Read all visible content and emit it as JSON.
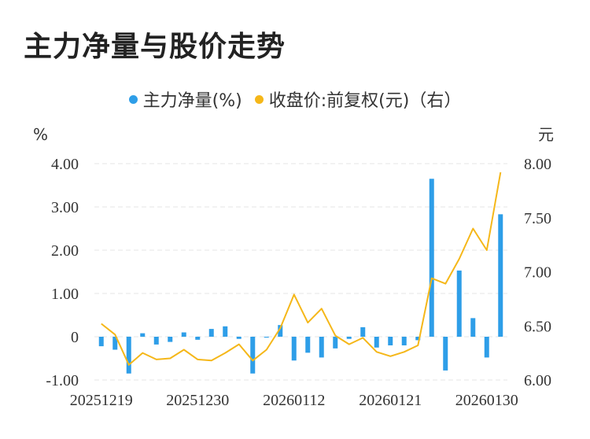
{
  "title": "主力净量与股价走势",
  "legend": {
    "series1": "主力净量(%)",
    "series2": "收盘价:前复权(元)（右）"
  },
  "colors": {
    "bar": "#2e9ee8",
    "line": "#f5b719",
    "grid": "#e6e6e6"
  },
  "chart_data": {
    "type": "bar",
    "title": "主力净量与股价走势",
    "left_axis": {
      "unit": "%",
      "ylim": [
        -1,
        4
      ],
      "ticks": [
        "4.00",
        "3.00",
        "2.00",
        "1.00",
        "0",
        "-1.00"
      ],
      "tick_values": [
        4,
        3,
        2,
        1,
        0,
        -1
      ]
    },
    "right_axis": {
      "unit": "元",
      "ylim": [
        6.0,
        8.0
      ],
      "ticks": [
        "8.00",
        "7.50",
        "7.00",
        "6.50",
        "6.00"
      ],
      "tick_values": [
        8.0,
        7.5,
        7.0,
        6.5,
        6.0
      ]
    },
    "x_tick_labels": [
      {
        "index": 0,
        "label": "20251219"
      },
      {
        "index": 7,
        "label": "20251230"
      },
      {
        "index": 14,
        "label": "20260112"
      },
      {
        "index": 21,
        "label": "20260121"
      },
      {
        "index": 28,
        "label": "20260130"
      }
    ],
    "series": [
      {
        "name": "主力净量(%)",
        "type": "bar",
        "axis": "left",
        "values": [
          -0.22,
          -0.3,
          -0.85,
          0.08,
          -0.18,
          -0.12,
          0.1,
          -0.07,
          0.18,
          0.24,
          -0.05,
          -0.85,
          -0.02,
          0.27,
          -0.55,
          -0.37,
          -0.48,
          -0.27,
          -0.05,
          0.22,
          -0.25,
          -0.2,
          -0.2,
          -0.08,
          3.65,
          -0.78,
          1.53,
          0.43,
          -0.48,
          2.83
        ]
      },
      {
        "name": "收盘价:前复权(元)（右）",
        "type": "line",
        "axis": "right",
        "values": [
          6.52,
          6.42,
          6.14,
          6.25,
          6.19,
          6.2,
          6.28,
          6.19,
          6.18,
          6.25,
          6.33,
          6.18,
          6.28,
          6.48,
          6.79,
          6.53,
          6.66,
          6.41,
          6.33,
          6.39,
          6.26,
          6.22,
          6.26,
          6.32,
          6.94,
          6.89,
          7.12,
          7.4,
          7.2,
          7.92
        ]
      }
    ]
  }
}
